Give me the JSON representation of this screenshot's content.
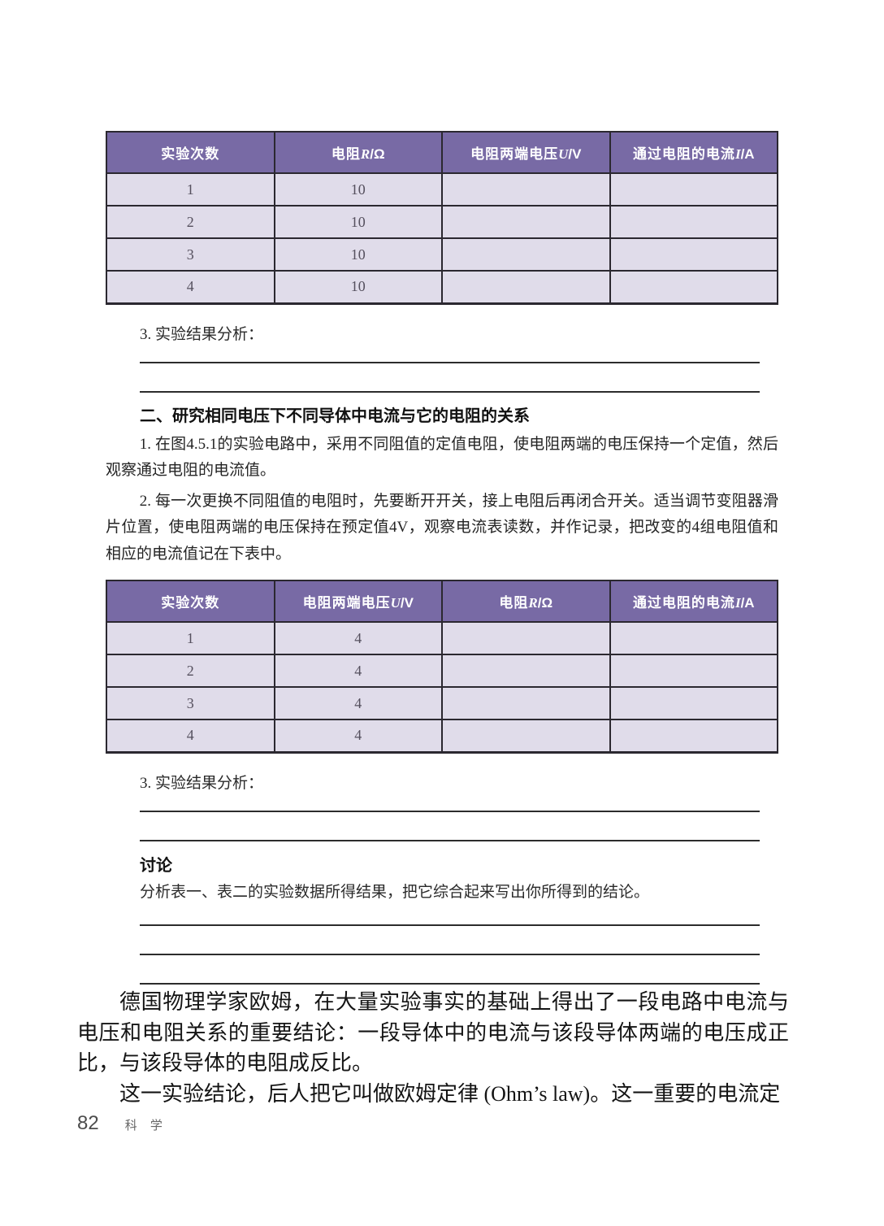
{
  "colors": {
    "header-bg": "#786aa5",
    "row-bg": "#e0dcea",
    "grid": "#2b2830"
  },
  "table1": {
    "columns": [
      {
        "pre": "实验次数",
        "var": "",
        "post": ""
      },
      {
        "pre": "电阻",
        "var": "R",
        "post": "/Ω"
      },
      {
        "pre": "电阻两端电压",
        "var": "U",
        "post": "/V"
      },
      {
        "pre": "通过电阻的电流",
        "var": "I",
        "post": "/A"
      }
    ],
    "rows": [
      [
        "1",
        "10",
        "",
        ""
      ],
      [
        "2",
        "10",
        "",
        ""
      ],
      [
        "3",
        "10",
        "",
        ""
      ],
      [
        "4",
        "10",
        "",
        ""
      ]
    ]
  },
  "analysis1": {
    "label": "3. 实验结果分析："
  },
  "section2": {
    "heading": "二、研究相同电压下不同导体中电流与它的电阻的关系",
    "para1": "1. 在图4.5.1的实验电路中，采用不同阻值的定值电阻，使电阻两端的电压保持一个定值，然后观察通过电阻的电流值。",
    "para2": "2. 每一次更换不同阻值的电阻时，先要断开开关，接上电阻后再闭合开关。适当调节变阻器滑片位置，使电阻两端的电压保持在预定值4V，观察电流表读数，并作记录，把改变的4组电阻值和相应的电流值记在下表中。"
  },
  "table2": {
    "columns": [
      {
        "pre": "实验次数",
        "var": "",
        "post": ""
      },
      {
        "pre": "电阻两端电压",
        "var": "U",
        "post": "/V"
      },
      {
        "pre": "电阻",
        "var": "R",
        "post": "/Ω"
      },
      {
        "pre": "通过电阻的电流",
        "var": "I",
        "post": "/A"
      }
    ],
    "rows": [
      [
        "1",
        "4",
        "",
        ""
      ],
      [
        "2",
        "4",
        "",
        ""
      ],
      [
        "3",
        "4",
        "",
        ""
      ],
      [
        "4",
        "4",
        "",
        ""
      ]
    ]
  },
  "analysis2": {
    "label": "3. 实验结果分析："
  },
  "discussion": {
    "heading": "讨论",
    "prompt": "分析表一、表二的实验数据所得结果，把它综合起来写出你所得到的结论。"
  },
  "conclusion": {
    "para1": "德国物理学家欧姆，在大量实验事实的基础上得出了一段电路中电流与电压和电阻关系的重要结论：一段导体中的电流与该段导体两端的电压成正比，与该段导体的电阻成反比。",
    "para2": "这一实验结论，后人把它叫做欧姆定律 (Ohm’s law)。这一重要的电流定"
  },
  "footer": {
    "page_number": "82",
    "subject": "科 学"
  }
}
